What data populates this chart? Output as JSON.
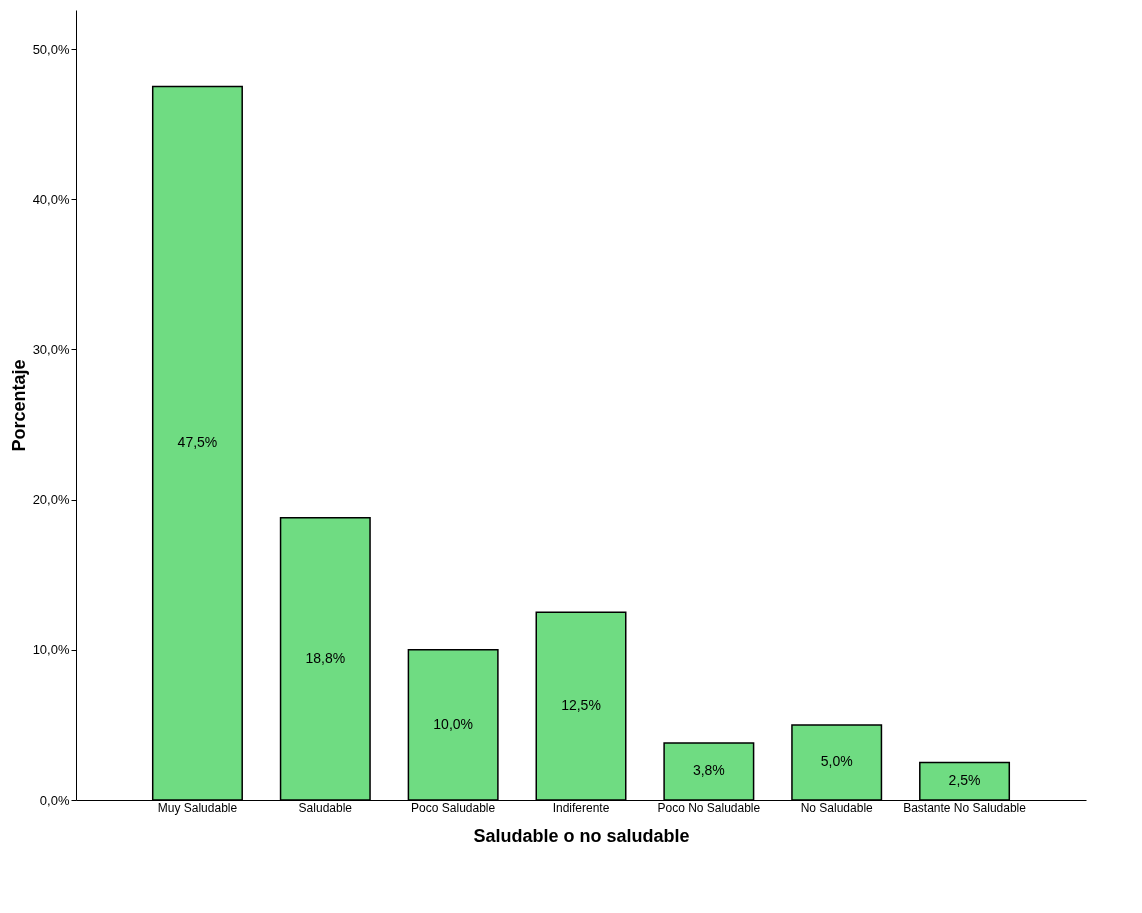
{
  "chart_data": {
    "type": "bar",
    "xlabel": "Saludable o no saludable",
    "ylabel": "Porcentaje",
    "categories": [
      "Muy Saludable",
      "Saludable",
      "Poco Saludable",
      "Indiferente",
      "Poco No Saludable",
      "No Saludable",
      "Bastante No Saludable"
    ],
    "values": [
      47.5,
      18.8,
      10.0,
      12.5,
      3.8,
      5.0,
      2.5
    ],
    "value_labels": [
      "47,5%",
      "18,8%",
      "10,0%",
      "12,5%",
      "3,8%",
      "5,0%",
      "2,5%"
    ],
    "color": "#6fdc82",
    "ylim": [
      0,
      52.6
    ],
    "yticks": [
      {
        "value": 0,
        "label": "0,0%"
      },
      {
        "value": 10,
        "label": "10,0%"
      },
      {
        "value": 20,
        "label": "20,0%"
      },
      {
        "value": 30,
        "label": "30,0%"
      },
      {
        "value": 40,
        "label": "40,0%"
      },
      {
        "value": 50,
        "label": "50,0%"
      }
    ],
    "grid": false
  }
}
